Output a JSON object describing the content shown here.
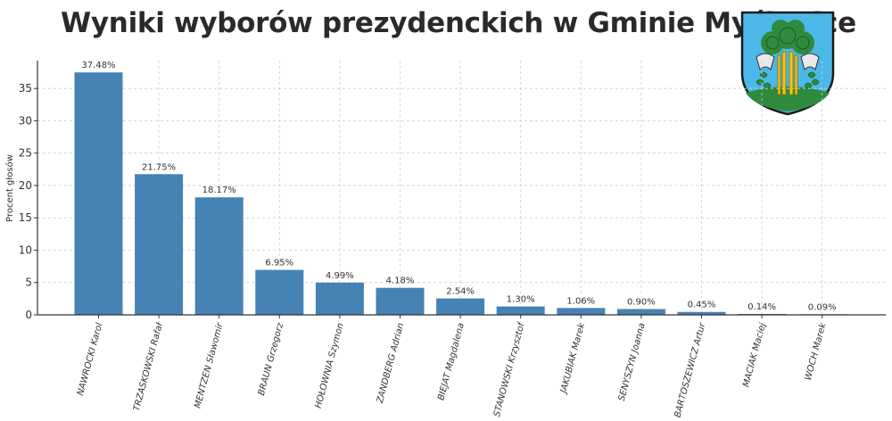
{
  "chart_data": {
    "type": "bar",
    "title": "Wyniki wyborów prezydenckich w Gminie Myślenice",
    "xlabel": "",
    "ylabel": "Procent głosów",
    "ylim": [
      0,
      39.3
    ],
    "yticks": [
      0,
      5,
      10,
      15,
      20,
      25,
      30,
      35
    ],
    "grid": true,
    "bar_color": "#4682b4",
    "categories": [
      "NAWROCKI Karol",
      "TRZASKOWSKI Rafał",
      "MENTZEN Sławomir",
      "BRAUN Grzegorz",
      "HOŁOWNIA Szymon",
      "ZANDBERG Adrian",
      "BIEJAT Magdalena",
      "STANOWSKI Krzysztof",
      "JAKUBIAK Marek",
      "SENYSZYN Joanna",
      "BARTOSZEWICZ Artur",
      "MACIAK Maciej",
      "WOCH Marek"
    ],
    "values": [
      37.48,
      21.75,
      18.17,
      6.95,
      4.99,
      4.18,
      2.54,
      1.3,
      1.06,
      0.9,
      0.45,
      0.14,
      0.09
    ],
    "data_labels": [
      "37.48%",
      "21.75%",
      "18.17%",
      "6.95%",
      "4.99%",
      "4.18%",
      "2.54%",
      "1.30%",
      "1.06%",
      "0.90%",
      "0.45%",
      "0.14%",
      "0.09%"
    ]
  },
  "coat_of_arms": {
    "icon": "myslenice-coat-of-arms-icon",
    "colors": {
      "sky": "#4cb8e8",
      "tree": "#2e8b3d",
      "trunk": "#f0c419",
      "axe": "#e8e8e8",
      "ground": "#2e8b3d"
    }
  }
}
